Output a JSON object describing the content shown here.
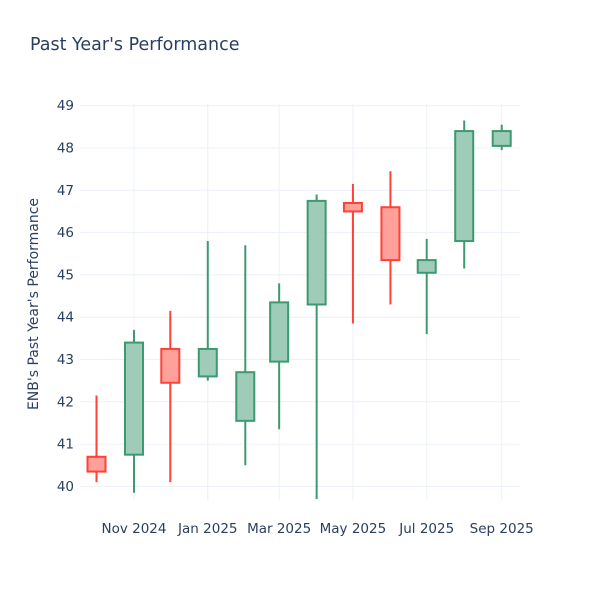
{
  "chart_data": {
    "type": "candlestick",
    "title": "Past Year's Performance",
    "ylabel": "ENB's Past Year's Performance",
    "xlabel": "",
    "ylim": [
      39.5,
      49.1
    ],
    "yticks": [
      40,
      41,
      42,
      43,
      44,
      45,
      46,
      47,
      48,
      49
    ],
    "xticks": [
      {
        "date": "2024-11-01",
        "label": "Nov 2024"
      },
      {
        "date": "2025-01-01",
        "label": "Jan 2025"
      },
      {
        "date": "2025-03-01",
        "label": "Mar 2025"
      },
      {
        "date": "2025-05-01",
        "label": "May 2025"
      },
      {
        "date": "2025-07-01",
        "label": "Jul 2025"
      },
      {
        "date": "2025-09-01",
        "label": "Sep 2025"
      }
    ],
    "grid": true,
    "legend": "none",
    "colors": {
      "increasing": "#3D9970",
      "decreasing": "#FF4136",
      "text": "#2a3f5f",
      "grid": "#EBF0F8",
      "background": "#FFFFFF"
    },
    "candles": [
      {
        "month": "Oct 2024",
        "date": "2024-10-01",
        "open": 40.7,
        "high": 42.15,
        "low": 40.1,
        "close": 40.35
      },
      {
        "month": "Nov 2024",
        "date": "2024-11-01",
        "open": 40.75,
        "high": 43.7,
        "low": 39.85,
        "close": 43.4
      },
      {
        "month": "Dec 2024",
        "date": "2024-12-01",
        "open": 43.25,
        "high": 44.15,
        "low": 40.1,
        "close": 42.45
      },
      {
        "month": "Jan 2025",
        "date": "2025-01-01",
        "open": 42.6,
        "high": 45.8,
        "low": 42.5,
        "close": 43.25
      },
      {
        "month": "Feb 2025",
        "date": "2025-02-01",
        "open": 41.55,
        "high": 45.7,
        "low": 40.5,
        "close": 42.7
      },
      {
        "month": "Mar 2025",
        "date": "2025-03-01",
        "open": 42.95,
        "high": 44.8,
        "low": 41.35,
        "close": 44.35
      },
      {
        "month": "Apr 2025",
        "date": "2025-04-01",
        "open": 44.3,
        "high": 46.9,
        "low": 39.7,
        "close": 46.75
      },
      {
        "month": "May 2025",
        "date": "2025-05-01",
        "open": 46.7,
        "high": 47.15,
        "low": 43.85,
        "close": 46.5
      },
      {
        "month": "Jun 2025",
        "date": "2025-06-01",
        "open": 46.6,
        "high": 47.45,
        "low": 44.3,
        "close": 45.35
      },
      {
        "month": "Jul 2025",
        "date": "2025-07-01",
        "open": 45.05,
        "high": 45.85,
        "low": 43.6,
        "close": 45.35
      },
      {
        "month": "Aug 2025",
        "date": "2025-08-01",
        "open": 45.8,
        "high": 48.65,
        "low": 45.15,
        "close": 48.4
      },
      {
        "month": "Sep 2025",
        "date": "2025-09-01",
        "open": 48.05,
        "high": 48.55,
        "low": 47.95,
        "close": 48.4
      }
    ]
  }
}
